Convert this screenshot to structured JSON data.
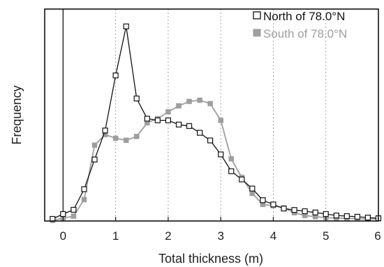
{
  "chart_data": {
    "type": "line",
    "title": "",
    "xlabel": "Total thickness (m)",
    "ylabel": "Frequency",
    "xlim": [
      -0.35,
      6.0
    ],
    "ylim": [
      0,
      1.0
    ],
    "xticks": [
      "0",
      "1",
      "2",
      "3",
      "4",
      "5",
      "6"
    ],
    "grid": "vertical dotted at x = 1, 2, 3, 4, 5",
    "reference_line_x": 0,
    "legend_position": "top-right",
    "series": [
      {
        "name": "North of 78.0°N",
        "color": "#111111",
        "marker": "hollow-square",
        "x": [
          -0.2,
          0.0,
          0.2,
          0.4,
          0.6,
          0.8,
          1.0,
          1.2,
          1.4,
          1.6,
          1.8,
          2.0,
          2.2,
          2.4,
          2.6,
          2.8,
          3.0,
          3.2,
          3.4,
          3.6,
          3.8,
          4.0,
          4.2,
          4.4,
          4.6,
          4.8,
          5.0,
          5.2,
          5.4,
          5.6,
          5.8,
          6.0
        ],
        "y": [
          0.01,
          0.033,
          0.053,
          0.15,
          0.29,
          0.427,
          0.687,
          0.918,
          0.578,
          0.483,
          0.475,
          0.475,
          0.455,
          0.448,
          0.416,
          0.38,
          0.314,
          0.235,
          0.196,
          0.153,
          0.098,
          0.078,
          0.059,
          0.052,
          0.046,
          0.04,
          0.033,
          0.026,
          0.023,
          0.02,
          0.016,
          0.013
        ]
      },
      {
        "name": "South of 78.0°N",
        "color": "#9e9e9e",
        "marker": "filled-square",
        "x": [
          -0.2,
          0.0,
          0.2,
          0.4,
          0.6,
          0.8,
          1.0,
          1.2,
          1.4,
          1.6,
          1.8,
          2.0,
          2.2,
          2.4,
          2.6,
          2.8,
          3.0,
          3.2,
          3.4,
          3.6,
          3.8,
          4.0,
          4.2,
          4.4,
          4.6,
          4.8,
          5.0,
          5.2,
          5.4,
          5.6,
          5.8,
          6.0
        ],
        "y": [
          0.003,
          0.013,
          0.023,
          0.101,
          0.358,
          0.408,
          0.39,
          0.381,
          0.399,
          0.463,
          0.483,
          0.515,
          0.543,
          0.564,
          0.57,
          0.554,
          0.475,
          0.293,
          0.206,
          0.13,
          0.078,
          0.072,
          0.062,
          0.039,
          0.026,
          0.02,
          0.016,
          0.013,
          0.013,
          0.01,
          0.01,
          0.01
        ]
      }
    ]
  }
}
